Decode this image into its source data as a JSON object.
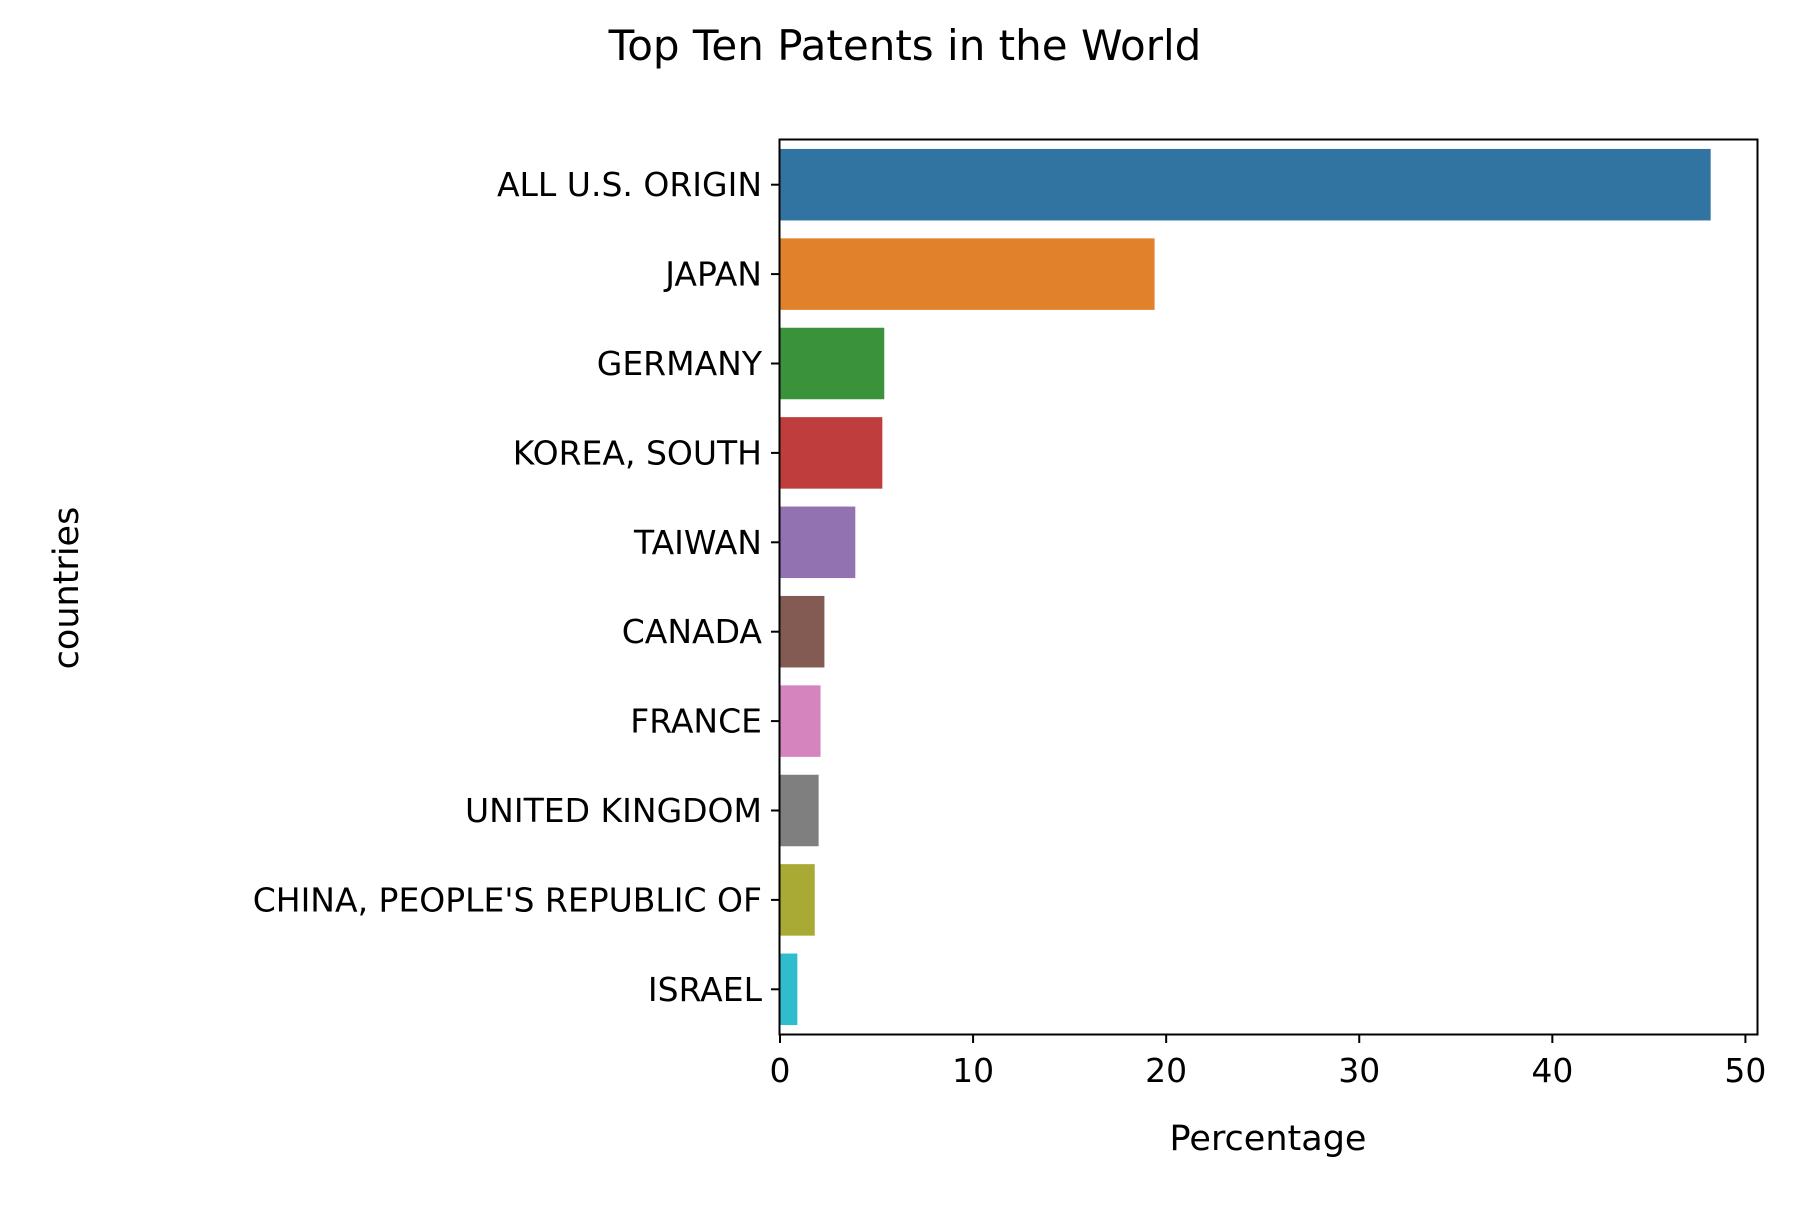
{
  "chart_data": {
    "type": "bar",
    "orientation": "horizontal",
    "title": "Top Ten Patents in the World",
    "xlabel": "Percentage",
    "ylabel": "countries",
    "xlim": [
      0,
      50.6
    ],
    "xticks": [
      0,
      10,
      20,
      30,
      40,
      50
    ],
    "grid": false,
    "categories": [
      "ALL U.S. ORIGIN",
      "JAPAN",
      "GERMANY",
      "KOREA, SOUTH",
      "TAIWAN",
      "CANADA",
      "FRANCE",
      "UNITED KINGDOM",
      "CHINA, PEOPLE'S REPUBLIC OF",
      "ISRAEL"
    ],
    "values": [
      48.2,
      19.4,
      5.4,
      5.3,
      3.9,
      2.3,
      2.1,
      2.0,
      1.8,
      0.9
    ],
    "colors": [
      "#3274a1",
      "#e1812c",
      "#3a923a",
      "#c03d3e",
      "#9372b2",
      "#845b53",
      "#d684bd",
      "#7f7f7f",
      "#a9aa35",
      "#2fbdce"
    ]
  }
}
